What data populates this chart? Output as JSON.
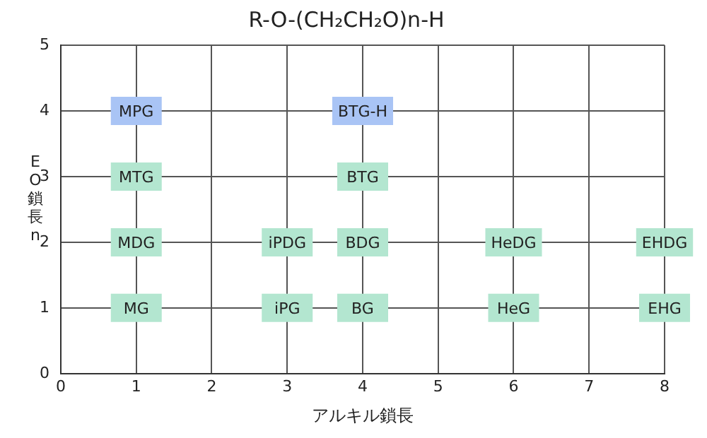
{
  "chart_data": {
    "type": "scatter",
    "title": "R-O-(CH₂CH₂O)n-H",
    "xlabel": "アルキル鎖長",
    "ylabel": "EO鎖長n",
    "x": [
      1,
      1,
      1,
      1,
      3,
      3,
      4,
      4,
      4,
      4,
      6,
      6,
      8,
      8
    ],
    "values": [
      4,
      3,
      2,
      1,
      2,
      1,
      4,
      3,
      2,
      1,
      2,
      1,
      2,
      1
    ],
    "colors": [
      "#a9c4f5",
      "#b3e6d0",
      "#b3e6d0",
      "#b3e6d0",
      "#b3e6d0",
      "#b3e6d0",
      "#a9c4f5",
      "#b3e6d0",
      "#b3e6d0",
      "#b3e6d0",
      "#b3e6d0",
      "#b3e6d0",
      "#b3e6d0",
      "#b3e6d0"
    ],
    "value_labels": [
      "MPG",
      "MTG",
      "MDG",
      "MG",
      "iPDG",
      "iPG",
      "BTG-H",
      "BTG",
      "BDG",
      "BG",
      "HeDG",
      "HeG",
      "EHDG",
      "EHG"
    ],
    "xlim": [
      0,
      8
    ],
    "xticks": [
      0,
      1,
      2,
      3,
      4,
      5,
      6,
      7,
      8
    ],
    "ylim": [
      0,
      5
    ],
    "yticks": [
      0,
      1,
      2,
      3,
      4,
      5
    ],
    "grid": true,
    "marker": "square"
  }
}
